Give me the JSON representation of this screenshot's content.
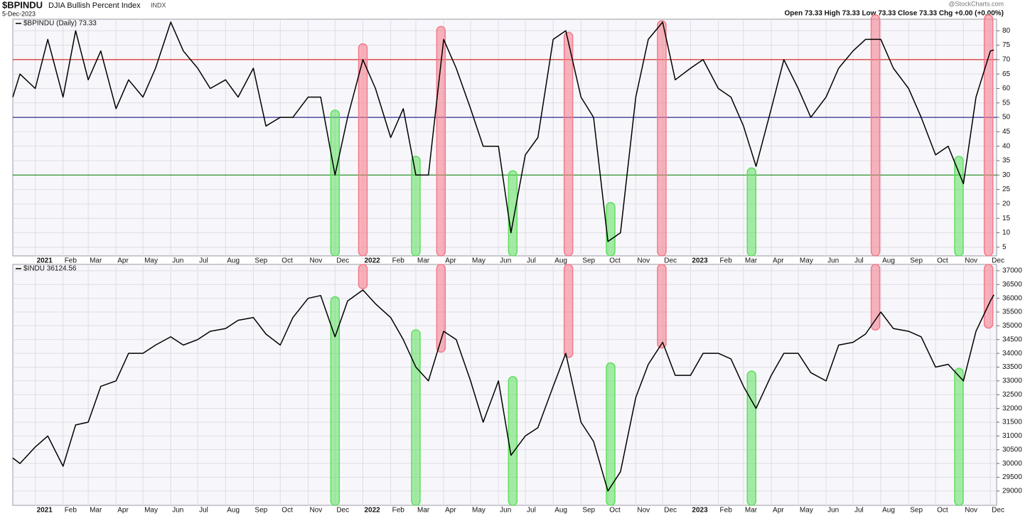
{
  "header": {
    "symbol": "$BPINDU",
    "name": "DJIA Bullish Percent Index",
    "exchange": "INDX",
    "date": "5-Dec-2023",
    "source": "@StockCharts.com",
    "quote": "Open 73.33 High 73.33 Low 73.33 Close 73.33 Chg +0.00 (+0.00%)"
  },
  "chart_data": [
    {
      "type": "line",
      "xlim": [
        "2020-12-07",
        "2023-12-08"
      ],
      "ylim": [
        2,
        84
      ],
      "yticks": [
        5,
        10,
        15,
        20,
        25,
        30,
        35,
        40,
        45,
        50,
        55,
        60,
        65,
        70,
        75,
        80
      ],
      "xticks": [
        {
          "value": "2021-01-01",
          "label": "2021"
        },
        {
          "value": "2021-02-01",
          "label": "Feb"
        },
        {
          "value": "2021-03-01",
          "label": "Mar"
        },
        {
          "value": "2021-04-01",
          "label": "Apr"
        },
        {
          "value": "2021-05-01",
          "label": "May"
        },
        {
          "value": "2021-06-01",
          "label": "Jun"
        },
        {
          "value": "2021-07-01",
          "label": "Jul"
        },
        {
          "value": "2021-08-01",
          "label": "Aug"
        },
        {
          "value": "2021-09-01",
          "label": "Sep"
        },
        {
          "value": "2021-10-01",
          "label": "Oct"
        },
        {
          "value": "2021-11-01",
          "label": "Nov"
        },
        {
          "value": "2021-12-01",
          "label": "Dec"
        },
        {
          "value": "2022-01-01",
          "label": "2022"
        },
        {
          "value": "2022-02-01",
          "label": "Feb"
        },
        {
          "value": "2022-03-01",
          "label": "Mar"
        },
        {
          "value": "2022-04-01",
          "label": "Apr"
        },
        {
          "value": "2022-05-01",
          "label": "May"
        },
        {
          "value": "2022-06-01",
          "label": "Jun"
        },
        {
          "value": "2022-07-01",
          "label": "Jul"
        },
        {
          "value": "2022-08-01",
          "label": "Aug"
        },
        {
          "value": "2022-09-01",
          "label": "Sep"
        },
        {
          "value": "2022-10-01",
          "label": "Oct"
        },
        {
          "value": "2022-11-01",
          "label": "Nov"
        },
        {
          "value": "2022-12-01",
          "label": "Dec"
        },
        {
          "value": "2023-01-01",
          "label": "2023"
        },
        {
          "value": "2023-02-01",
          "label": "Feb"
        },
        {
          "value": "2023-03-01",
          "label": "Mar"
        },
        {
          "value": "2023-04-01",
          "label": "Apr"
        },
        {
          "value": "2023-05-01",
          "label": "May"
        },
        {
          "value": "2023-06-01",
          "label": "Jun"
        },
        {
          "value": "2023-07-01",
          "label": "Jul"
        },
        {
          "value": "2023-08-01",
          "label": "Aug"
        },
        {
          "value": "2023-09-01",
          "label": "Sep"
        },
        {
          "value": "2023-10-01",
          "label": "Oct"
        },
        {
          "value": "2023-11-01",
          "label": "Nov"
        },
        {
          "value": "2023-12-01",
          "label": "Dec"
        }
      ],
      "grid": true,
      "x": [
        "2020-12-07",
        "2020-12-15",
        "2021-01-01",
        "2021-01-15",
        "2021-02-01",
        "2021-02-15",
        "2021-03-01",
        "2021-03-15",
        "2021-04-01",
        "2021-04-15",
        "2021-05-01",
        "2021-05-15",
        "2021-06-01",
        "2021-06-15",
        "2021-07-01",
        "2021-07-15",
        "2021-08-01",
        "2021-08-15",
        "2021-09-01",
        "2021-09-15",
        "2021-10-01",
        "2021-10-15",
        "2021-11-01",
        "2021-11-15",
        "2021-12-01",
        "2021-12-15",
        "2022-01-01",
        "2022-01-15",
        "2022-02-01",
        "2022-02-15",
        "2022-03-01",
        "2022-03-15",
        "2022-04-01",
        "2022-04-15",
        "2022-05-01",
        "2022-05-15",
        "2022-06-01",
        "2022-06-15",
        "2022-07-01",
        "2022-07-15",
        "2022-08-01",
        "2022-08-15",
        "2022-09-01",
        "2022-09-15",
        "2022-10-01",
        "2022-10-15",
        "2022-11-01",
        "2022-11-15",
        "2022-12-01",
        "2022-12-15",
        "2023-01-01",
        "2023-01-15",
        "2023-02-01",
        "2023-02-15",
        "2023-03-01",
        "2023-03-15",
        "2023-04-01",
        "2023-04-15",
        "2023-05-01",
        "2023-05-15",
        "2023-06-01",
        "2023-06-15",
        "2023-07-01",
        "2023-07-15",
        "2023-08-01",
        "2023-08-15",
        "2023-09-01",
        "2023-09-15",
        "2023-10-01",
        "2023-10-15",
        "2023-11-01",
        "2023-11-15",
        "2023-12-01",
        "2023-12-05"
      ],
      "series": [
        {
          "name": "$BPINDU (Daily) 73.33",
          "color": "#000000",
          "values": [
            57,
            65,
            60,
            77,
            57,
            80,
            63,
            73,
            53,
            63,
            57,
            67,
            83,
            73,
            67,
            60,
            63,
            57,
            67,
            47,
            50,
            50,
            57,
            57,
            30,
            50,
            70,
            60,
            43,
            53,
            30,
            30,
            77,
            67,
            53,
            40,
            40,
            10,
            37,
            43,
            77,
            80,
            57,
            50,
            7,
            10,
            57,
            77,
            83,
            63,
            67,
            70,
            60,
            57,
            47,
            33,
            53,
            70,
            60,
            50,
            57,
            67,
            73,
            77,
            77,
            67,
            60,
            50,
            37,
            40,
            27,
            57,
            73,
            73.33
          ]
        }
      ],
      "reference_lines": [
        {
          "value": 70,
          "color": "#d00000"
        },
        {
          "value": 50,
          "color": "#000080"
        },
        {
          "value": 30,
          "color": "#008000"
        }
      ],
      "bands": [
        {
          "x": "2021-12-01",
          "value": 51,
          "color": "#5ee05e",
          "direction": "down"
        },
        {
          "x": "2022-01-01",
          "value": 74,
          "color": "#f57a88",
          "direction": "down"
        },
        {
          "x": "2022-03-01",
          "value": 35,
          "color": "#5ee05e",
          "direction": "down"
        },
        {
          "x": "2022-03-29",
          "value": 80,
          "color": "#f57a88",
          "direction": "down"
        },
        {
          "x": "2022-06-17",
          "value": 30,
          "color": "#5ee05e",
          "direction": "down"
        },
        {
          "x": "2022-08-18",
          "value": 78,
          "color": "#f57a88",
          "direction": "down"
        },
        {
          "x": "2022-10-04",
          "value": 19,
          "color": "#5ee05e",
          "direction": "down"
        },
        {
          "x": "2022-11-30",
          "value": 82,
          "color": "#f57a88",
          "direction": "down"
        },
        {
          "x": "2023-03-10",
          "value": 31,
          "color": "#5ee05e",
          "direction": "down"
        },
        {
          "x": "2023-07-26",
          "value": 84,
          "color": "#f57a88",
          "direction": "down"
        },
        {
          "x": "2023-10-27",
          "value": 35,
          "color": "#5ee05e",
          "direction": "down"
        },
        {
          "x": "2023-11-29",
          "value": 84,
          "color": "#f57a88",
          "direction": "down"
        }
      ]
    },
    {
      "type": "line",
      "xlim": [
        "2020-12-07",
        "2023-12-08"
      ],
      "ylim": [
        28480,
        37230
      ],
      "yticks": [
        29000,
        29500,
        30000,
        30500,
        31000,
        31500,
        32000,
        32500,
        33000,
        33500,
        34000,
        34500,
        35000,
        35500,
        36000,
        36500,
        37000
      ],
      "xticks": [
        {
          "value": "2021-01-01",
          "label": "2021"
        },
        {
          "value": "2021-02-01",
          "label": "Feb"
        },
        {
          "value": "2021-03-01",
          "label": "Mar"
        },
        {
          "value": "2021-04-01",
          "label": "Apr"
        },
        {
          "value": "2021-05-01",
          "label": "May"
        },
        {
          "value": "2021-06-01",
          "label": "Jun"
        },
        {
          "value": "2021-07-01",
          "label": "Jul"
        },
        {
          "value": "2021-08-01",
          "label": "Aug"
        },
        {
          "value": "2021-09-01",
          "label": "Sep"
        },
        {
          "value": "2021-10-01",
          "label": "Oct"
        },
        {
          "value": "2021-11-01",
          "label": "Nov"
        },
        {
          "value": "2021-12-01",
          "label": "Dec"
        },
        {
          "value": "2022-01-01",
          "label": "2022"
        },
        {
          "value": "2022-02-01",
          "label": "Feb"
        },
        {
          "value": "2022-03-01",
          "label": "Mar"
        },
        {
          "value": "2022-04-01",
          "label": "Apr"
        },
        {
          "value": "2022-05-01",
          "label": "May"
        },
        {
          "value": "2022-06-01",
          "label": "Jun"
        },
        {
          "value": "2022-07-01",
          "label": "Jul"
        },
        {
          "value": "2022-08-01",
          "label": "Aug"
        },
        {
          "value": "2022-09-01",
          "label": "Sep"
        },
        {
          "value": "2022-10-01",
          "label": "Oct"
        },
        {
          "value": "2022-11-01",
          "label": "Nov"
        },
        {
          "value": "2022-12-01",
          "label": "Dec"
        },
        {
          "value": "2023-01-01",
          "label": "2023"
        },
        {
          "value": "2023-02-01",
          "label": "Feb"
        },
        {
          "value": "2023-03-01",
          "label": "Mar"
        },
        {
          "value": "2023-04-01",
          "label": "Apr"
        },
        {
          "value": "2023-05-01",
          "label": "May"
        },
        {
          "value": "2023-06-01",
          "label": "Jun"
        },
        {
          "value": "2023-07-01",
          "label": "Jul"
        },
        {
          "value": "2023-08-01",
          "label": "Aug"
        },
        {
          "value": "2023-09-01",
          "label": "Sep"
        },
        {
          "value": "2023-10-01",
          "label": "Oct"
        },
        {
          "value": "2023-11-01",
          "label": "Nov"
        },
        {
          "value": "2023-12-01",
          "label": "Dec"
        }
      ],
      "grid": true,
      "x": [
        "2020-12-07",
        "2020-12-15",
        "2021-01-01",
        "2021-01-15",
        "2021-02-01",
        "2021-02-15",
        "2021-03-01",
        "2021-03-15",
        "2021-04-01",
        "2021-04-15",
        "2021-05-01",
        "2021-05-15",
        "2021-06-01",
        "2021-06-15",
        "2021-07-01",
        "2021-07-15",
        "2021-08-01",
        "2021-08-15",
        "2021-09-01",
        "2021-09-15",
        "2021-10-01",
        "2021-10-15",
        "2021-11-01",
        "2021-11-15",
        "2021-12-01",
        "2021-12-15",
        "2022-01-01",
        "2022-01-15",
        "2022-02-01",
        "2022-02-15",
        "2022-03-01",
        "2022-03-15",
        "2022-04-01",
        "2022-04-15",
        "2022-05-01",
        "2022-05-15",
        "2022-06-01",
        "2022-06-15",
        "2022-07-01",
        "2022-07-15",
        "2022-08-01",
        "2022-08-15",
        "2022-09-01",
        "2022-09-15",
        "2022-10-01",
        "2022-10-15",
        "2022-11-01",
        "2022-11-15",
        "2022-12-01",
        "2022-12-15",
        "2023-01-01",
        "2023-01-15",
        "2023-02-01",
        "2023-02-15",
        "2023-03-01",
        "2023-03-15",
        "2023-04-01",
        "2023-04-15",
        "2023-05-01",
        "2023-05-15",
        "2023-06-01",
        "2023-06-15",
        "2023-07-01",
        "2023-07-15",
        "2023-08-01",
        "2023-08-15",
        "2023-09-01",
        "2023-09-15",
        "2023-10-01",
        "2023-10-15",
        "2023-11-01",
        "2023-11-15",
        "2023-12-01",
        "2023-12-05"
      ],
      "series": [
        {
          "name": "$INDU 36124.56",
          "color": "#000000",
          "values": [
            30200,
            30000,
            30600,
            31000,
            29900,
            31400,
            31500,
            32800,
            33000,
            34000,
            34000,
            34300,
            34600,
            34300,
            34500,
            34800,
            34900,
            35200,
            35300,
            34700,
            34300,
            35300,
            36000,
            36100,
            34600,
            35900,
            36300,
            35800,
            35300,
            34500,
            33500,
            33000,
            34800,
            34500,
            33000,
            31500,
            33000,
            30300,
            31000,
            31300,
            32800,
            34000,
            31500,
            30800,
            29000,
            29700,
            32400,
            33600,
            34400,
            33200,
            33200,
            34000,
            34000,
            33800,
            32800,
            32000,
            33200,
            34000,
            34000,
            33300,
            33000,
            34300,
            34400,
            34700,
            35500,
            34900,
            34800,
            34600,
            33500,
            33600,
            33000,
            34800,
            35900,
            36124.56
          ]
        }
      ],
      "bands": [
        {
          "x": "2021-12-01",
          "value": 35900,
          "color": "#5ee05e",
          "direction": "down"
        },
        {
          "x": "2022-01-01",
          "value": 36500,
          "color": "#f57a88",
          "direction": "up"
        },
        {
          "x": "2022-03-01",
          "value": 34700,
          "color": "#5ee05e",
          "direction": "down"
        },
        {
          "x": "2022-03-29",
          "value": 34200,
          "color": "#f57a88",
          "direction": "up"
        },
        {
          "x": "2022-06-17",
          "value": 33000,
          "color": "#5ee05e",
          "direction": "down"
        },
        {
          "x": "2022-08-18",
          "value": 34000,
          "color": "#f57a88",
          "direction": "up"
        },
        {
          "x": "2022-10-04",
          "value": 33500,
          "color": "#5ee05e",
          "direction": "down"
        },
        {
          "x": "2022-11-30",
          "value": 34350,
          "color": "#f57a88",
          "direction": "up"
        },
        {
          "x": "2023-03-10",
          "value": 33200,
          "color": "#5ee05e",
          "direction": "down"
        },
        {
          "x": "2023-07-26",
          "value": 35000,
          "color": "#f57a88",
          "direction": "up"
        },
        {
          "x": "2023-10-27",
          "value": 33300,
          "color": "#5ee05e",
          "direction": "down"
        },
        {
          "x": "2023-11-29",
          "value": 35070,
          "color": "#f57a88",
          "direction": "up"
        }
      ]
    }
  ]
}
